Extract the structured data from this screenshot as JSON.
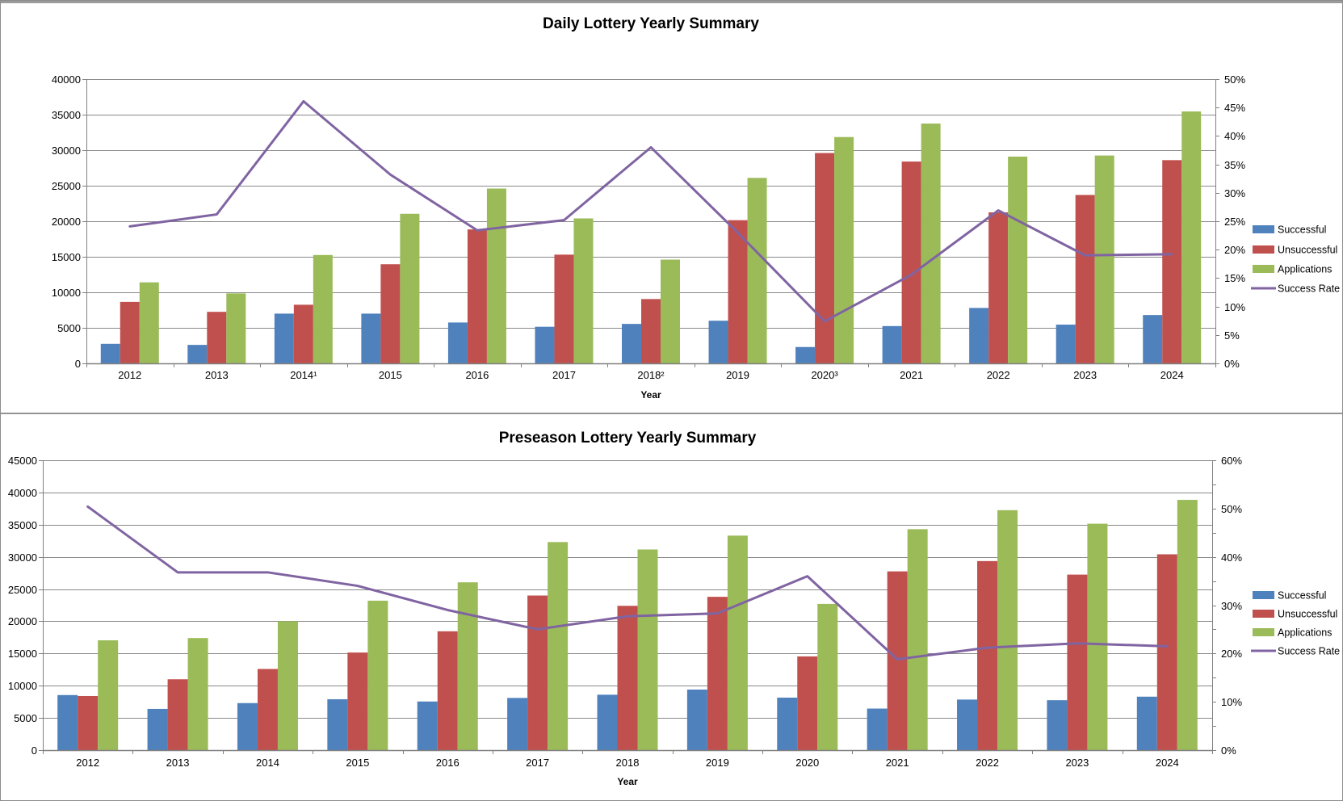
{
  "colors": {
    "successful": "#4F81BD",
    "unsuccessful": "#C0504D",
    "applications": "#9BBB59",
    "success_rate": "#8064A2",
    "gridline": "#898989",
    "axis": "#808080",
    "text": "#000000"
  },
  "chart_data": [
    {
      "type": "bar",
      "title": "Daily Lottery Yearly Summary",
      "xlabel": "Year",
      "legend_position": "right",
      "grid": true,
      "categories": [
        "2012",
        "2013",
        "2014¹",
        "2015",
        "2016",
        "2017",
        "2018²",
        "2019",
        "2020³",
        "2021",
        "2022",
        "2023",
        "2024"
      ],
      "series": [
        {
          "name": "Successful",
          "color_key": "successful",
          "values": [
            2750,
            2600,
            7000,
            7000,
            5750,
            5150,
            5550,
            6000,
            2300,
            5250,
            7800,
            5450,
            6800
          ]
        },
        {
          "name": "Unsuccessful",
          "color_key": "unsuccessful",
          "values": [
            8650,
            7250,
            8250,
            13950,
            18850,
            15300,
            9050,
            20150,
            29600,
            28400,
            21250,
            23700,
            28600
          ]
        },
        {
          "name": "Applications",
          "color_key": "applications",
          "values": [
            11400,
            9850,
            15250,
            21050,
            24600,
            20400,
            14600,
            26100,
            31850,
            33750,
            29100,
            29250,
            35450
          ]
        }
      ],
      "line_series": {
        "name": "Success Rate",
        "color_key": "success_rate",
        "axis": "right",
        "values_pct": [
          24.1,
          26.2,
          46.1,
          33.2,
          23.4,
          25.2,
          38.0,
          23.0,
          7.4,
          15.6,
          26.9,
          19.0,
          19.2
        ]
      },
      "left_axis": {
        "min": 0,
        "max": 40000,
        "step": 5000,
        "tick_labels": [
          "40000",
          "35000",
          "30000",
          "25000",
          "20000",
          "15000",
          "10000",
          "5000",
          "0"
        ]
      },
      "right_axis": {
        "min": 0,
        "max": 50,
        "label_step": 5,
        "tick_labels": [
          "50%",
          "45%",
          "40%",
          "35%",
          "30%",
          "25%",
          "20%",
          "15%",
          "10%",
          "5%",
          "0%"
        ]
      },
      "legend": [
        "Successful",
        "Unsuccessful",
        "Applications",
        "Success Rate"
      ]
    },
    {
      "type": "bar",
      "title": "Preseason Lottery Yearly Summary",
      "xlabel": "Year",
      "legend_position": "right",
      "grid": true,
      "categories": [
        "2012",
        "2013",
        "2014",
        "2015",
        "2016",
        "2017",
        "2018",
        "2019",
        "2020",
        "2021",
        "2022",
        "2023",
        "2024"
      ],
      "series": [
        {
          "name": "Successful",
          "color_key": "successful",
          "values": [
            8550,
            6400,
            7300,
            7900,
            7550,
            8100,
            8600,
            9400,
            8150,
            6450,
            7850,
            7750,
            8300
          ]
        },
        {
          "name": "Unsuccessful",
          "color_key": "unsuccessful",
          "values": [
            8400,
            11000,
            12600,
            15150,
            18450,
            24000,
            22400,
            23800,
            14550,
            27750,
            29350,
            27250,
            30400
          ]
        },
        {
          "name": "Applications",
          "color_key": "applications",
          "values": [
            17050,
            17400,
            20000,
            23200,
            26050,
            32300,
            31150,
            33300,
            22700,
            34300,
            37250,
            35150,
            38850
          ]
        }
      ],
      "line_series": {
        "name": "Success Rate",
        "color_key": "success_rate",
        "axis": "right",
        "values_pct": [
          50.4,
          36.8,
          36.8,
          34.0,
          29.0,
          25.0,
          27.7,
          28.3,
          36.0,
          18.8,
          21.2,
          22.1,
          21.5
        ]
      },
      "left_axis": {
        "min": 0,
        "max": 45000,
        "step": 5000,
        "tick_labels": [
          "45000",
          "40000",
          "35000",
          "30000",
          "25000",
          "20000",
          "15000",
          "10000",
          "5000",
          "0"
        ]
      },
      "right_axis": {
        "min": 0,
        "max": 60,
        "label_step": 10,
        "tick_labels": [
          "60%",
          "50%",
          "40%",
          "30%",
          "20%",
          "10%",
          "0%"
        ]
      },
      "legend": [
        "Successful",
        "Unsuccessful",
        "Applications",
        "Success Rate"
      ]
    }
  ]
}
